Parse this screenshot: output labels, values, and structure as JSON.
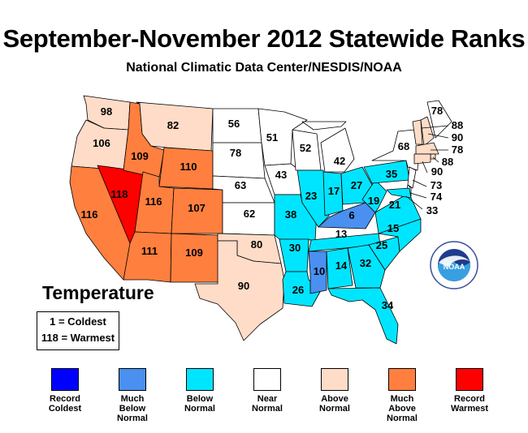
{
  "title": "September-November 2012 Statewide Ranks",
  "subtitle": "National Climatic Data Center/NESDIS/NOAA",
  "variable_label": "Temperature",
  "key": {
    "coldest": "1 = Coldest",
    "warmest": "118 = Warmest"
  },
  "categories": [
    {
      "id": "record_coldest",
      "label": "Record\nColdest",
      "color": "#0000ff"
    },
    {
      "id": "much_below",
      "label": "Much\nBelow\nNormal",
      "color": "#4a90f0"
    },
    {
      "id": "below",
      "label": "Below\nNormal",
      "color": "#00e5ff"
    },
    {
      "id": "near",
      "label": "Near\nNormal",
      "color": "#ffffff"
    },
    {
      "id": "above",
      "label": "Above\nNormal",
      "color": "#ffdcc8"
    },
    {
      "id": "much_above",
      "label": "Much\nAbove\nNormal",
      "color": "#ff7f3f"
    },
    {
      "id": "record_warmest",
      "label": "Record\nWarmest",
      "color": "#ff0000"
    }
  ],
  "states": [
    {
      "state": "WA",
      "rank": "98",
      "category": "above"
    },
    {
      "state": "OR",
      "rank": "106",
      "category": "above"
    },
    {
      "state": "CA",
      "rank": "116",
      "category": "much_above"
    },
    {
      "state": "NV",
      "rank": "118",
      "category": "record_warmest"
    },
    {
      "state": "ID",
      "rank": "109",
      "category": "much_above"
    },
    {
      "state": "MT",
      "rank": "82",
      "category": "above"
    },
    {
      "state": "WY",
      "rank": "110",
      "category": "much_above"
    },
    {
      "state": "UT",
      "rank": "116",
      "category": "much_above"
    },
    {
      "state": "AZ",
      "rank": "111",
      "category": "much_above"
    },
    {
      "state": "CO",
      "rank": "107",
      "category": "much_above"
    },
    {
      "state": "NM",
      "rank": "109",
      "category": "much_above"
    },
    {
      "state": "ND",
      "rank": "56",
      "category": "near"
    },
    {
      "state": "SD",
      "rank": "78",
      "category": "near"
    },
    {
      "state": "NE",
      "rank": "63",
      "category": "near"
    },
    {
      "state": "KS",
      "rank": "62",
      "category": "near"
    },
    {
      "state": "OK",
      "rank": "80",
      "category": "above"
    },
    {
      "state": "TX",
      "rank": "90",
      "category": "above"
    },
    {
      "state": "MN",
      "rank": "51",
      "category": "near"
    },
    {
      "state": "IA",
      "rank": "43",
      "category": "near"
    },
    {
      "state": "MO",
      "rank": "38",
      "category": "below"
    },
    {
      "state": "AR",
      "rank": "30",
      "category": "below"
    },
    {
      "state": "LA",
      "rank": "26",
      "category": "below"
    },
    {
      "state": "WI",
      "rank": "52",
      "category": "near"
    },
    {
      "state": "IL",
      "rank": "23",
      "category": "below"
    },
    {
      "state": "MI",
      "rank": "42",
      "category": "near"
    },
    {
      "state": "IN",
      "rank": "17",
      "category": "below"
    },
    {
      "state": "OH",
      "rank": "27",
      "category": "below"
    },
    {
      "state": "KY",
      "rank": "6",
      "category": "much_below"
    },
    {
      "state": "TN",
      "rank": "13",
      "category": "below"
    },
    {
      "state": "MS",
      "rank": "10",
      "category": "much_below"
    },
    {
      "state": "AL",
      "rank": "14",
      "category": "below"
    },
    {
      "state": "GA",
      "rank": "32",
      "category": "below"
    },
    {
      "state": "FL",
      "rank": "34",
      "category": "below"
    },
    {
      "state": "SC",
      "rank": "25",
      "category": "below"
    },
    {
      "state": "NC",
      "rank": "15",
      "category": "below"
    },
    {
      "state": "VA",
      "rank": "21",
      "category": "below"
    },
    {
      "state": "WV",
      "rank": "19",
      "category": "below"
    },
    {
      "state": "PA",
      "rank": "35",
      "category": "below"
    },
    {
      "state": "NY",
      "rank": "68",
      "category": "near"
    },
    {
      "state": "ME",
      "rank": "78",
      "category": "near"
    },
    {
      "state": "VT",
      "rank": "88",
      "category": "above"
    },
    {
      "state": "NH",
      "rank": "90",
      "category": "above"
    },
    {
      "state": "MA",
      "rank": "78",
      "category": "above"
    },
    {
      "state": "RI",
      "rank": "88",
      "category": "above"
    },
    {
      "state": "CT",
      "rank": "90",
      "category": "above"
    },
    {
      "state": "NJ",
      "rank": "73",
      "category": "near"
    },
    {
      "state": "DE",
      "rank": "74",
      "category": "near"
    },
    {
      "state": "MD",
      "rank": "33",
      "category": "below"
    }
  ]
}
